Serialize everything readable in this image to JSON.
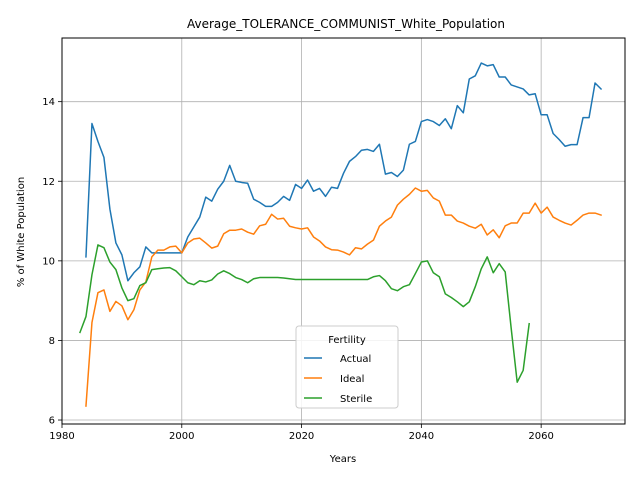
{
  "chart_data": {
    "type": "line",
    "title": "Average_TOLERANCE_COMMUNIST_White_Population",
    "xlabel": "Years",
    "ylabel": "% of White Population",
    "xlim": [
      1980,
      2074
    ],
    "ylim": [
      5.9,
      15.6
    ],
    "xticks": [
      1980,
      2000,
      2020,
      2040,
      2060
    ],
    "yticks": [
      6,
      8,
      10,
      12,
      14
    ],
    "grid": true,
    "legend": {
      "title": "Fertility",
      "placement": "lower-center"
    },
    "series": [
      {
        "name": "Actual",
        "color": "#1f77b4",
        "x": [
          1984,
          1985,
          1986,
          1987,
          1988,
          1989,
          1990,
          1991,
          1992,
          1993,
          1994,
          1995,
          1996,
          1997,
          1998,
          1999,
          2000,
          2001,
          2002,
          2003,
          2004,
          2005,
          2006,
          2007,
          2008,
          2009,
          2010,
          2011,
          2012,
          2013,
          2014,
          2015,
          2016,
          2017,
          2018,
          2019,
          2020,
          2021,
          2022,
          2023,
          2024,
          2025,
          2026,
          2027,
          2028,
          2029,
          2030,
          2031,
          2032,
          2033,
          2034,
          2035,
          2036,
          2037,
          2038,
          2039,
          2040,
          2041,
          2042,
          2043,
          2044,
          2045,
          2046,
          2047,
          2048,
          2049,
          2050,
          2051,
          2052,
          2053,
          2054,
          2055,
          2056,
          2057,
          2058,
          2059,
          2060,
          2061,
          2062,
          2063,
          2064,
          2065,
          2066,
          2067,
          2068,
          2069,
          2070
        ],
        "y": [
          10.1,
          13.45,
          13.0,
          12.6,
          11.3,
          10.45,
          10.15,
          9.5,
          9.7,
          9.85,
          10.35,
          10.2,
          10.2,
          10.2,
          10.2,
          10.2,
          10.2,
          10.6,
          10.85,
          11.1,
          11.6,
          11.5,
          11.8,
          12.0,
          12.4,
          12.0,
          11.97,
          11.95,
          11.55,
          11.47,
          11.37,
          11.37,
          11.47,
          11.62,
          11.52,
          11.92,
          11.82,
          12.03,
          11.75,
          11.82,
          11.62,
          11.85,
          11.82,
          12.2,
          12.5,
          12.62,
          12.78,
          12.8,
          12.75,
          12.93,
          12.18,
          12.22,
          12.12,
          12.28,
          12.93,
          13.0,
          13.5,
          13.55,
          13.5,
          13.4,
          13.57,
          13.32,
          13.9,
          13.72,
          14.57,
          14.65,
          14.97,
          14.9,
          14.93,
          14.62,
          14.62,
          14.42,
          14.37,
          14.32,
          14.17,
          14.2,
          13.67,
          13.67,
          13.2,
          13.05,
          12.88,
          12.92,
          12.92,
          13.6,
          13.6,
          14.47,
          14.32
        ]
      },
      {
        "name": "Ideal",
        "color": "#ff7f0e",
        "x": [
          1984,
          1985,
          1986,
          1987,
          1988,
          1989,
          1990,
          1991,
          1992,
          1993,
          1994,
          1995,
          1996,
          1997,
          1998,
          1999,
          2000,
          2001,
          2002,
          2003,
          2004,
          2005,
          2006,
          2007,
          2008,
          2009,
          2010,
          2011,
          2012,
          2013,
          2014,
          2015,
          2016,
          2017,
          2018,
          2019,
          2020,
          2021,
          2022,
          2023,
          2024,
          2025,
          2026,
          2027,
          2028,
          2029,
          2030,
          2031,
          2032,
          2033,
          2034,
          2035,
          2036,
          2037,
          2038,
          2039,
          2040,
          2041,
          2042,
          2043,
          2044,
          2045,
          2046,
          2047,
          2048,
          2049,
          2050,
          2051,
          2052,
          2053,
          2054,
          2055,
          2056,
          2057,
          2058,
          2059,
          2060,
          2061,
          2062,
          2063,
          2064,
          2065,
          2066,
          2067,
          2068,
          2069,
          2070
        ],
        "y": [
          6.35,
          8.45,
          9.2,
          9.27,
          8.73,
          8.98,
          8.87,
          8.52,
          8.77,
          9.27,
          9.47,
          10.1,
          10.27,
          10.27,
          10.35,
          10.37,
          10.2,
          10.45,
          10.55,
          10.57,
          10.45,
          10.32,
          10.37,
          10.68,
          10.77,
          10.77,
          10.8,
          10.72,
          10.67,
          10.88,
          10.92,
          11.17,
          11.05,
          11.07,
          10.87,
          10.83,
          10.8,
          10.83,
          10.6,
          10.5,
          10.35,
          10.28,
          10.27,
          10.22,
          10.15,
          10.33,
          10.3,
          10.42,
          10.52,
          10.87,
          11.0,
          11.1,
          11.4,
          11.55,
          11.67,
          11.83,
          11.75,
          11.77,
          11.58,
          11.5,
          11.15,
          11.15,
          11.0,
          10.95,
          10.87,
          10.82,
          10.92,
          10.65,
          10.78,
          10.58,
          10.88,
          10.95,
          10.95,
          11.2,
          11.2,
          11.45,
          11.2,
          11.35,
          11.1,
          11.02,
          10.95,
          10.9,
          11.02,
          11.15,
          11.2,
          11.2,
          11.15
        ]
      },
      {
        "name": "Sterile",
        "color": "#2ca02c",
        "x": [
          1983,
          1984,
          1985,
          1986,
          1987,
          1988,
          1989,
          1990,
          1991,
          1992,
          1993,
          1994,
          1995,
          1996,
          1997,
          1998,
          1999,
          2000,
          2001,
          2002,
          2003,
          2004,
          2005,
          2006,
          2007,
          2008,
          2009,
          2010,
          2011,
          2012,
          2013,
          2014,
          2015,
          2016,
          2017,
          2018,
          2019,
          2020,
          2021,
          2022,
          2023,
          2024,
          2025,
          2026,
          2027,
          2028,
          2029,
          2030,
          2031,
          2032,
          2033,
          2034,
          2035,
          2036,
          2037,
          2038,
          2039,
          2040,
          2041,
          2042,
          2043,
          2044,
          2045,
          2046,
          2047,
          2048,
          2049,
          2050,
          2051,
          2052,
          2053,
          2054,
          2055,
          2056,
          2057,
          2058
        ],
        "y": [
          8.2,
          8.6,
          9.65,
          10.4,
          10.33,
          9.97,
          9.78,
          9.32,
          9.0,
          9.05,
          9.38,
          9.45,
          9.78,
          9.8,
          9.82,
          9.83,
          9.75,
          9.6,
          9.45,
          9.4,
          9.5,
          9.47,
          9.52,
          9.67,
          9.75,
          9.68,
          9.58,
          9.53,
          9.45,
          9.55,
          9.58,
          9.58,
          9.58,
          9.58,
          9.57,
          9.55,
          9.53,
          9.53,
          9.53,
          9.53,
          9.53,
          9.53,
          9.53,
          9.53,
          9.53,
          9.53,
          9.53,
          9.53,
          9.53,
          9.6,
          9.63,
          9.5,
          9.3,
          9.25,
          9.35,
          9.4,
          9.68,
          9.97,
          10.0,
          9.7,
          9.6,
          9.17,
          9.08,
          8.97,
          8.85,
          8.97,
          9.35,
          9.8,
          10.1,
          9.7,
          9.93,
          9.72,
          8.3,
          6.95,
          7.25,
          8.42
        ]
      }
    ]
  }
}
